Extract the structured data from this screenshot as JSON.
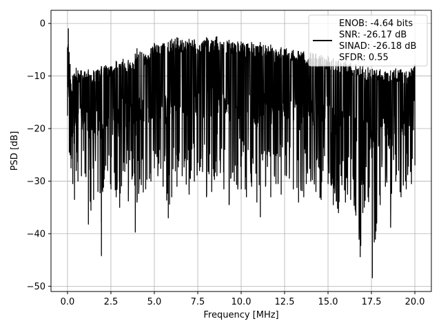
{
  "chart_data": {
    "type": "line",
    "title": "",
    "xlabel": "Frequency [MHz]",
    "ylabel": "PSD [dB]",
    "xlim": [
      -0.95,
      20.95
    ],
    "ylim": [
      -51,
      2.5
    ],
    "xticks": [
      0.0,
      2.5,
      5.0,
      7.5,
      10.0,
      12.5,
      15.0,
      17.5,
      20.0
    ],
    "xtick_labels": [
      "0.0",
      "2.5",
      "5.0",
      "7.5",
      "10.0",
      "12.5",
      "15.0",
      "17.5",
      "20.0"
    ],
    "yticks": [
      0,
      -10,
      -20,
      -30,
      -40,
      -50
    ],
    "ytick_labels": [
      "0",
      "−10",
      "−20",
      "−30",
      "−40",
      "−50"
    ],
    "grid": true,
    "legend": {
      "placement": "upper-right",
      "entries": [
        "ENOB: -4.64 bits",
        "SNR: -26.17 dB",
        "SINAD: -26.18 dB",
        "SFDR: 0.55"
      ]
    },
    "series": [
      {
        "color": "#000000",
        "x": [
          0.0,
          0.05,
          0.1,
          0.15,
          0.2,
          0.3,
          0.4,
          0.5,
          0.6,
          0.8,
          1.0,
          1.2,
          1.5,
          1.75,
          1.95,
          2.2,
          2.5,
          2.8,
          3.0,
          3.2,
          3.5,
          3.75,
          3.9,
          4.0,
          4.5,
          4.8,
          5.0,
          5.2,
          5.5,
          5.8,
          6.0,
          6.3,
          6.6,
          7.0,
          7.3,
          7.6,
          8.0,
          8.3,
          8.6,
          9.0,
          9.3,
          9.6,
          9.8,
          10.0,
          10.3,
          10.6,
          10.9,
          11.1,
          11.4,
          11.7,
          12.0,
          12.3,
          12.6,
          13.0,
          13.3,
          13.6,
          14.0,
          14.3,
          14.6,
          15.0,
          15.3,
          15.6,
          16.0,
          16.3,
          16.6,
          16.85,
          17.0,
          17.3,
          17.55,
          17.8,
          18.0,
          18.3,
          18.6,
          18.9,
          19.2,
          19.5,
          19.8,
          20.0
        ],
        "y_upper": [
          -4.6,
          -1.0,
          -5.5,
          -7.8,
          -11.5,
          -10.0,
          -9.6,
          -8.5,
          -9.0,
          -9.0,
          -9.2,
          -8.8,
          -9.0,
          -8.8,
          -8.2,
          -8.0,
          -8.2,
          -7.2,
          -7.8,
          -6.8,
          -7.0,
          -7.5,
          -5.8,
          -4.8,
          -6.0,
          -4.8,
          -3.8,
          -4.2,
          -3.8,
          -3.6,
          -3.0,
          -2.7,
          -3.2,
          -3.0,
          -3.1,
          -4.2,
          -2.7,
          -3.2,
          -2.5,
          -3.6,
          -3.2,
          -3.8,
          -3.5,
          -3.5,
          -4.0,
          -3.6,
          -4.4,
          -3.6,
          -4.2,
          -4.1,
          -5.0,
          -4.6,
          -4.8,
          -5.1,
          -5.3,
          -5.4,
          -5.6,
          -5.8,
          -6.1,
          -6.2,
          -6.7,
          -7.1,
          -7.3,
          -7.6,
          -7.8,
          -8.0,
          -8.2,
          -8.4,
          -8.7,
          -8.9,
          -8.8,
          -9.2,
          -9.0,
          -8.6,
          -8.8,
          -9.2,
          -8.6,
          -7.8
        ],
        "y_lower": [
          -17.5,
          -12.0,
          -24.5,
          -25.0,
          -27.5,
          -30.5,
          -33.5,
          -28.0,
          -30.0,
          -29.0,
          -28.5,
          -38.2,
          -33.5,
          -32.0,
          -44.2,
          -27.0,
          -31.5,
          -33.0,
          -35.0,
          -28.0,
          -33.8,
          -29.0,
          -39.7,
          -34.0,
          -31.5,
          -30.0,
          -27.5,
          -29.0,
          -31.0,
          -37.0,
          -33.0,
          -31.0,
          -29.0,
          -32.5,
          -30.0,
          -28.0,
          -33.0,
          -32.0,
          -29.0,
          -31.5,
          -34.5,
          -30.0,
          -31.5,
          -31.5,
          -33.0,
          -31.0,
          -34.0,
          -36.8,
          -31.0,
          -33.0,
          -30.5,
          -32.5,
          -29.0,
          -31.5,
          -34.0,
          -33.0,
          -30.0,
          -32.0,
          -33.5,
          -30.5,
          -34.5,
          -36.0,
          -34.0,
          -33.5,
          -36.5,
          -44.4,
          -36.0,
          -33.0,
          -48.4,
          -38.0,
          -34.5,
          -31.0,
          -38.8,
          -30.0,
          -33.0,
          -31.5,
          -30.5,
          -27.0
        ]
      }
    ]
  }
}
